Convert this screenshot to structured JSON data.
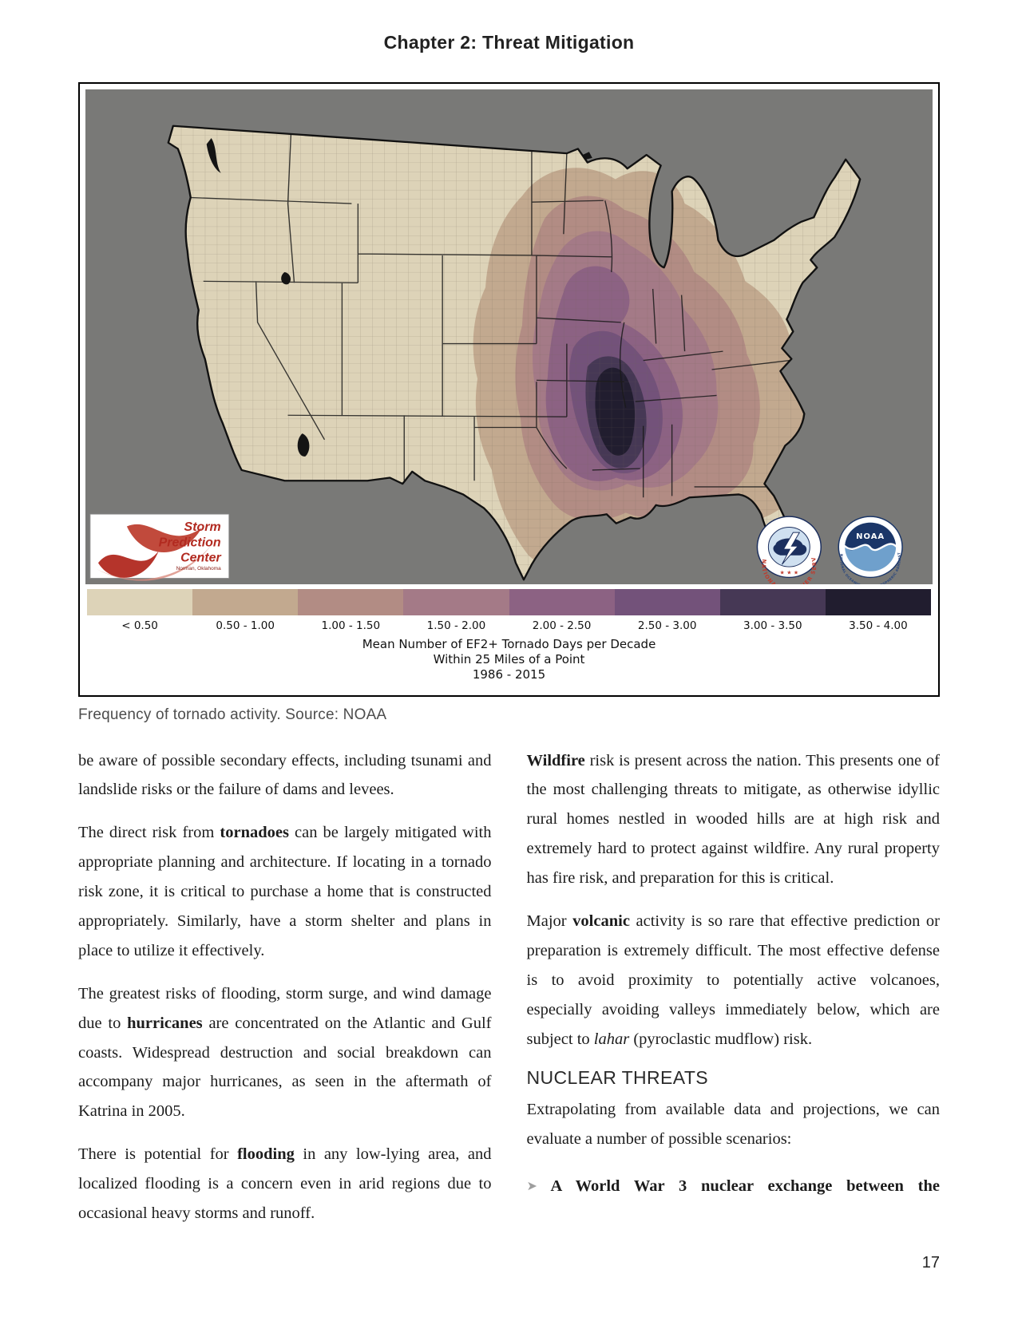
{
  "page": {
    "header": "Chapter 2: Threat Mitigation",
    "page_number": "17"
  },
  "colors": {
    "map_background": "#797977",
    "land": "#ded2b6",
    "map_outline": "#111111",
    "state_line": "#1a1a1a",
    "accent_red": "#b5342b",
    "nws_navy": "#1c2f5e",
    "noaa_navy": "#1b3668",
    "noaa_light_blue": "#6fa0cc",
    "bullet_gray": "#9e9e9e"
  },
  "figure": {
    "caption": "Frequency of tornado activity. Source: NOAA",
    "legend": {
      "bins": [
        {
          "label": "< 0.50",
          "color": "#ddd3b8"
        },
        {
          "label": "0.50 - 1.00",
          "color": "#c2a98f"
        },
        {
          "label": "1.00 - 1.50",
          "color": "#b28c84"
        },
        {
          "label": "1.50 - 2.00",
          "color": "#a47a87"
        },
        {
          "label": "2.00 - 2.50",
          "color": "#8c6283"
        },
        {
          "label": "2.50 - 3.00",
          "color": "#73527a"
        },
        {
          "label": "3.00 - 3.50",
          "color": "#463855"
        },
        {
          "label": "3.50 - 4.00",
          "color": "#211d2f"
        }
      ],
      "title_line1": "Mean Number of EF2+ Tornado Days per Decade",
      "title_line2": "Within 25 Miles of a Point",
      "title_line3": "1986 - 2015"
    },
    "logos": {
      "spc": {
        "line1": "Storm",
        "line2": "Prediction",
        "line3": "Center",
        "subtitle": "Norman, Oklahoma"
      },
      "nws": {
        "ring_text": "NATIONAL WEATHER SERVICE",
        "stars": "★ ★ ★"
      },
      "noaa": {
        "label": "NOAA",
        "ring_text": "NATIONAL OCEANIC AND ATMOSPHERIC ADMINISTRATION"
      }
    }
  },
  "body": {
    "bullet_glyph": "➤",
    "left_column": [
      {
        "type": "p",
        "segments": [
          {
            "t": "be aware of possible secondary effects, including tsunami and landslide risks or the failure of dams and levees."
          }
        ]
      },
      {
        "type": "p",
        "segments": [
          {
            "t": "The direct risk from "
          },
          {
            "t": "tornadoes",
            "b": true
          },
          {
            "t": " can be largely mitigated with appropriate planning and architecture. If locating in a tornado risk zone, it is critical to purchase a home that is constructed appropriately. Similarly, have a storm shelter and plans in place to utilize it effectively."
          }
        ]
      },
      {
        "type": "p",
        "segments": [
          {
            "t": "The greatest risks of flooding, storm surge, and wind damage due to "
          },
          {
            "t": "hurricanes",
            "b": true
          },
          {
            "t": " are concentrated on the Atlantic and Gulf coasts. Widespread destruction and social breakdown can accompany major hurricanes, as seen in the aftermath of Katrina in 2005."
          }
        ]
      },
      {
        "type": "p",
        "segments": [
          {
            "t": "There is potential for "
          },
          {
            "t": "flooding",
            "b": true
          },
          {
            "t": " in any low-lying area, and localized flooding is a concern even in arid regions due to occasional heavy storms and runoff."
          }
        ]
      }
    ],
    "right_column": [
      {
        "type": "p",
        "segments": [
          {
            "t": "Wildfire",
            "b": true
          },
          {
            "t": " risk is present across the nation. This presents one of the most challenging threats to mitigate, as otherwise idyllic rural homes nestled in wooded hills are at high risk and extremely hard to protect against wildfire. Any rural property has fire risk, and preparation for this is critical."
          }
        ]
      },
      {
        "type": "p",
        "segments": [
          {
            "t": "Major "
          },
          {
            "t": "volcanic",
            "b": true
          },
          {
            "t": " activity is so rare that effective prediction or preparation is extremely difficult. The most effective defense is to avoid proximity to potentially active volcanoes, especially avoiding valleys immediately below, which are subject to "
          },
          {
            "t": "lahar",
            "i": true
          },
          {
            "t": " (pyroclastic mudflow) risk."
          }
        ]
      },
      {
        "type": "heading",
        "text": "NUCLEAR THREATS"
      },
      {
        "type": "p",
        "segments": [
          {
            "t": "Extrapolating from available data and projections, we can evaluate a number of possible scenarios:"
          }
        ]
      },
      {
        "type": "bullet",
        "segments": [
          {
            "t": "A World War 3 nuclear exchange between the",
            "b": true
          }
        ]
      }
    ]
  }
}
